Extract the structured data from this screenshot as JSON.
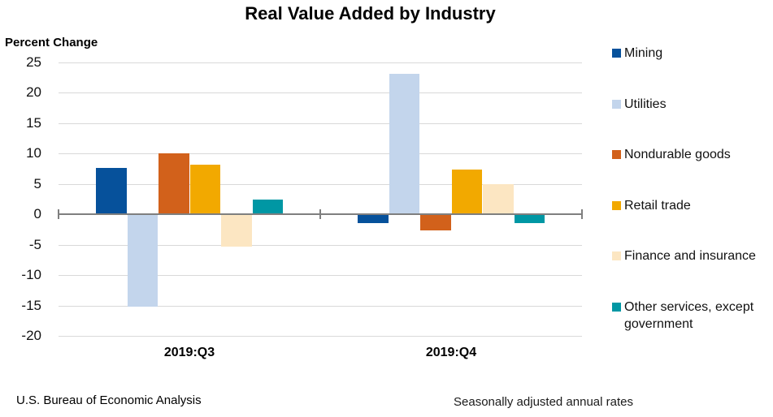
{
  "title": "Real Value Added by Industry",
  "y_axis_title": "Percent Change",
  "footer": {
    "left": "U.S. Bureau of Economic Analysis",
    "right": "Seasonally adjusted annual rates"
  },
  "colors": {
    "gridline": "#d9d9d9",
    "zero_axis": "#7f7f7f",
    "background": "#ffffff",
    "text": "#000000"
  },
  "chart_data": {
    "type": "bar",
    "title": "Real Value Added by Industry",
    "ylabel": "Percent Change",
    "xlabel": "",
    "categories": [
      "2019:Q3",
      "2019:Q4"
    ],
    "series": [
      {
        "name": "Mining",
        "color": "#06519b",
        "values": [
          7.7,
          -1.5
        ]
      },
      {
        "name": "Utilities",
        "color": "#c3d5ec",
        "values": [
          -15.2,
          23.2
        ]
      },
      {
        "name": "Nondurable goods",
        "color": "#d2611b",
        "values": [
          10.1,
          -2.6
        ]
      },
      {
        "name": "Retail trade",
        "color": "#f2a900",
        "values": [
          8.2,
          7.4
        ]
      },
      {
        "name": "Finance and insurance",
        "color": "#fce6c2",
        "values": [
          -5.3,
          5.0
        ]
      },
      {
        "name": "Other services, except government",
        "color": "#0097a4",
        "values": [
          2.5,
          -1.5
        ]
      }
    ],
    "ylim": [
      -20,
      25
    ],
    "yticks": [
      25,
      20,
      15,
      10,
      5,
      0,
      -5,
      -10,
      -15,
      -20
    ],
    "grid": true,
    "legend_position": "right",
    "notes": "Seasonally adjusted annual rates"
  }
}
